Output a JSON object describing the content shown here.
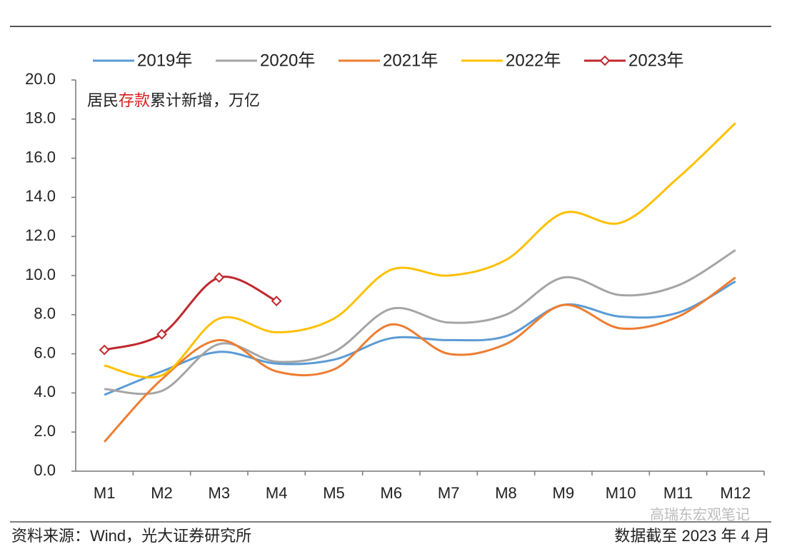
{
  "chart_data": {
    "type": "line",
    "subtitle": [
      "居民",
      "存款",
      "累计新增，万亿"
    ],
    "subtitle_colors": [
      "#222222",
      "#d62020",
      "#222222"
    ],
    "categories": [
      "M1",
      "M2",
      "M3",
      "M4",
      "M5",
      "M6",
      "M7",
      "M8",
      "M9",
      "M10",
      "M11",
      "M12"
    ],
    "series": [
      {
        "name": "2019年",
        "color": "#5b9bd5",
        "values": [
          3.9,
          5.1,
          6.1,
          5.5,
          5.7,
          6.8,
          6.7,
          6.9,
          8.5,
          7.9,
          8.1,
          9.7
        ]
      },
      {
        "name": "2020年",
        "color": "#a5a5a5",
        "values": [
          4.2,
          4.1,
          6.5,
          5.6,
          6.1,
          8.3,
          7.6,
          8.0,
          9.9,
          9.0,
          9.5,
          11.3
        ]
      },
      {
        "name": "2021年",
        "color": "#ed7d31",
        "values": [
          1.5,
          4.7,
          6.7,
          5.1,
          5.2,
          7.5,
          6.0,
          6.5,
          8.5,
          7.3,
          7.9,
          9.9
        ]
      },
      {
        "name": "2022年",
        "color": "#ffc000",
        "values": [
          5.4,
          4.9,
          7.8,
          7.1,
          7.8,
          10.3,
          10.0,
          10.8,
          13.2,
          12.7,
          15.0,
          17.8
        ]
      },
      {
        "name": "2023年",
        "color": "#c0282d",
        "markers": true,
        "values": [
          6.2,
          7.0,
          9.9,
          8.7,
          null,
          null,
          null,
          null,
          null,
          null,
          null,
          null
        ]
      }
    ],
    "ylim": [
      0,
      20
    ],
    "yticks": [
      {
        "value": 0,
        "label": "0.0"
      },
      {
        "value": 2,
        "label": "2.0"
      },
      {
        "value": 4,
        "label": "4.0"
      },
      {
        "value": 6,
        "label": "6.0"
      },
      {
        "value": 8,
        "label": "8.0"
      },
      {
        "value": 10,
        "label": "10.0"
      },
      {
        "value": 12,
        "label": "12.0"
      },
      {
        "value": 14,
        "label": "14.0"
      },
      {
        "value": 16,
        "label": "16.0"
      },
      {
        "value": 18,
        "label": "18.0"
      },
      {
        "value": 20,
        "label": "20.0"
      }
    ],
    "source": "资料来源：Wind，光大证券研究所",
    "note": "数据截至 2023 年 4 月",
    "watermark": "高瑞东宏观笔记"
  }
}
